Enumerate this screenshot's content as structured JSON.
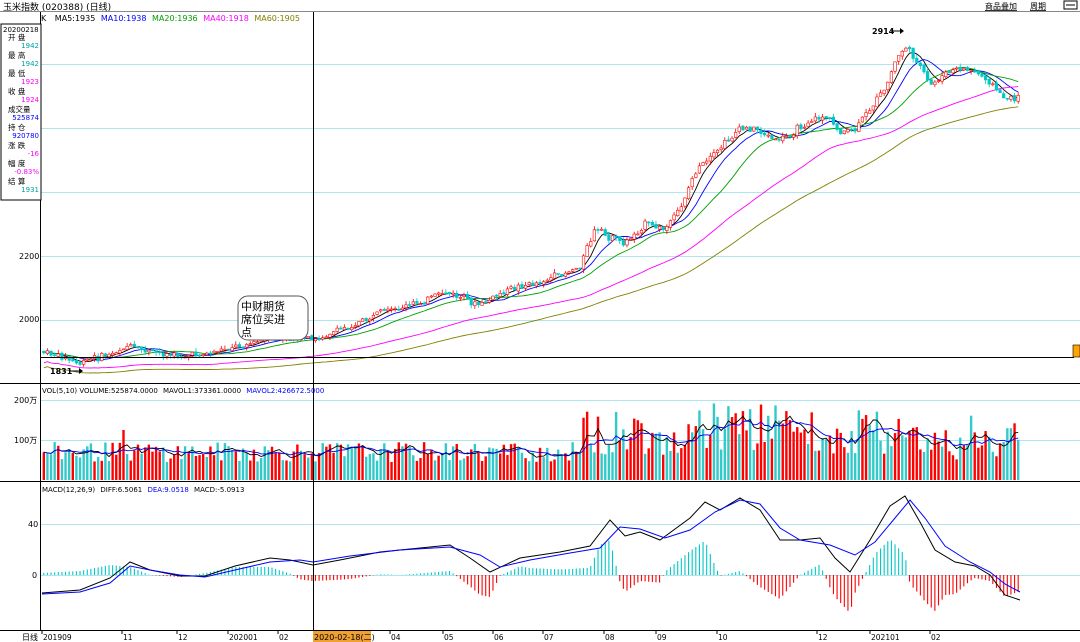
{
  "titlebar": {
    "title": "玉米指数 (020388) (日线)",
    "btn_add": "商品叠加",
    "btn_period": "周期"
  },
  "ma_legend": [
    {
      "text": "K",
      "color": "#000000"
    },
    {
      "text": "MA5:1935",
      "color": "#000000"
    },
    {
      "text": "MA10:1938",
      "color": "#0000ff"
    },
    {
      "text": "MA20:1936",
      "color": "#00a000"
    },
    {
      "text": "MA40:1918",
      "color": "#ff00ff"
    },
    {
      "text": "MA60:1905",
      "color": "#808000"
    }
  ],
  "info_panel": {
    "date": "20200218",
    "rows": [
      {
        "label": "开  盘",
        "value": "1942",
        "color": "#00a0a0"
      },
      {
        "label": "最  高",
        "value": "1942",
        "color": "#00a0a0"
      },
      {
        "label": "最  低",
        "value": "1923",
        "color": "#ff00ff"
      },
      {
        "label": "收  盘",
        "value": "1924",
        "color": "#ff00ff"
      },
      {
        "label": "成交量",
        "value": "525874",
        "color": "#0000ff"
      },
      {
        "label": "持  仓",
        "value": "920780",
        "color": "#0000ff"
      },
      {
        "label": "涨  跌",
        "value": "-16",
        "color": "#ff00ff"
      },
      {
        "label": "幅  度",
        "value": "-0.83%",
        "color": "#ff00ff"
      },
      {
        "label": "结  算",
        "value": "1931",
        "color": "#00a0a0"
      }
    ]
  },
  "annotation": {
    "lines": [
      "中财期货",
      "席位买进",
      "点"
    ]
  },
  "price_axis": {
    "ticks": [
      "2200",
      "2000"
    ]
  },
  "labels": {
    "high_mark": "2914",
    "low_mark": "1831"
  },
  "vol_legend": [
    {
      "text": "VOL(5,10) VOLUME:525874.0000",
      "color": "#000000"
    },
    {
      "text": "MAVOL1:373361.0000",
      "color": "#000000"
    },
    {
      "text": "MAVOL2:426672.5000",
      "color": "#0000ff"
    }
  ],
  "vol_axis": {
    "ticks": [
      "200万",
      "100万"
    ]
  },
  "macd_legend": [
    {
      "text": "MACD(12,26,9)",
      "color": "#000000"
    },
    {
      "text": "DIFF:6.5061",
      "color": "#000000"
    },
    {
      "text": "DEA:9.0518",
      "color": "#0000ff"
    },
    {
      "text": "MACD:-5.0913",
      "color": "#000000"
    }
  ],
  "macd_axis": {
    "ticks": [
      "40",
      "0"
    ]
  },
  "date_axis": {
    "period_label": "日线",
    "cursor_date": "2020-02-18(二)",
    "months": [
      "201909",
      "11",
      "12",
      "202001",
      "02",
      "04",
      "05",
      "06",
      "07",
      "08",
      "09",
      "10",
      "12",
      "202101",
      "02"
    ]
  },
  "colors": {
    "up": "#ff0000",
    "down": "#00c8c8",
    "vol_up": "#ff0000",
    "vol_down": "#33c9c9"
  }
}
